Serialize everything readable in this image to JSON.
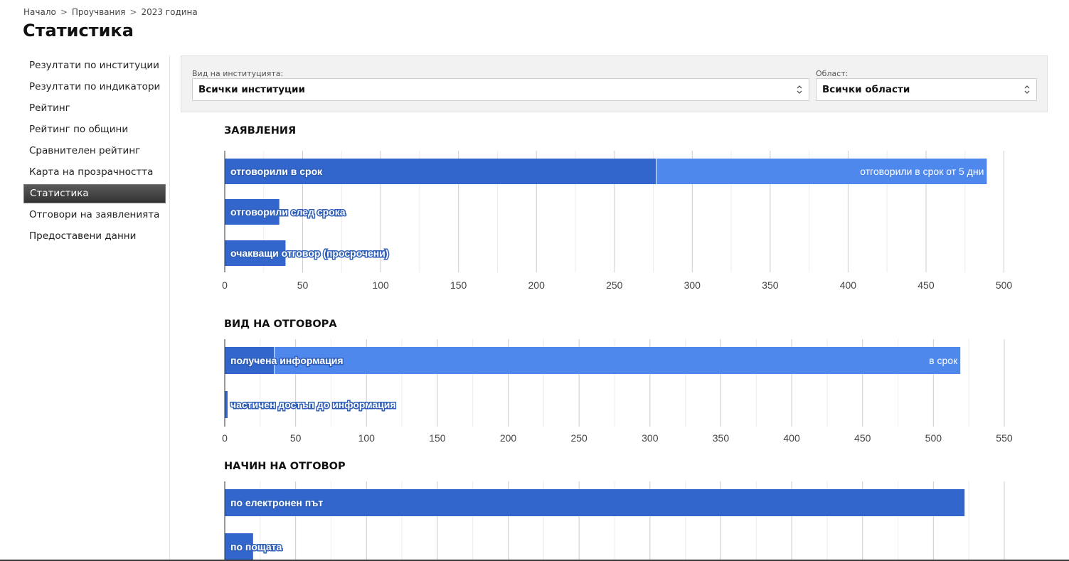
{
  "breadcrumb": {
    "home": "Начало",
    "section": "Проучвания",
    "current": "2023 година",
    "separator": ">"
  },
  "page_title": "Статистика",
  "sidebar": {
    "items": [
      {
        "label": "Резултати по институции",
        "active": false
      },
      {
        "label": "Резултати по индикатори",
        "active": false
      },
      {
        "label": "Рейтинг",
        "active": false
      },
      {
        "label": "Рейтинг по общини",
        "active": false
      },
      {
        "label": "Сравнителен рейтинг",
        "active": false
      },
      {
        "label": "Карта на прозрачността",
        "active": false
      },
      {
        "label": "Статистика",
        "active": true
      },
      {
        "label": "Отговори на заявленията",
        "active": false
      },
      {
        "label": "Предоставени данни",
        "active": false
      }
    ]
  },
  "filters": {
    "institution": {
      "label": "Вид на институцията:",
      "value": "Всички институции",
      "icon": "select-arrows-icon"
    },
    "region": {
      "label": "Област:",
      "value": "Всички области",
      "icon": "select-arrows-icon"
    }
  },
  "colors": {
    "primary": "#3366cc",
    "secondary": "#4f88ec",
    "grid": "#d6d6d6"
  },
  "chart_data": [
    {
      "type": "bar",
      "orientation": "horizontal",
      "stacked": true,
      "title": "ЗАЯВЛЕНИЯ",
      "xlim": [
        0,
        500
      ],
      "ticks": [
        0,
        50,
        100,
        150,
        200,
        250,
        300,
        350,
        400,
        450,
        500
      ],
      "bars": [
        {
          "segments": [
            {
              "label": "отговорили в срок",
              "value": 277,
              "color": "#3366cc"
            },
            {
              "label": "отговорили в срок от 5 дни",
              "value": 212,
              "color": "#4f88ec"
            }
          ]
        },
        {
          "segments": [
            {
              "label": "отговорили след срока",
              "value": 35,
              "color": "#3366cc"
            }
          ]
        },
        {
          "segments": [
            {
              "label": "очакващи отговор (просрочени)",
              "value": 39,
              "color": "#3366cc"
            }
          ]
        }
      ]
    },
    {
      "type": "bar",
      "orientation": "horizontal",
      "stacked": true,
      "title": "ВИД НА ОТГОВОРА",
      "xlim": [
        0,
        550
      ],
      "ticks": [
        0,
        50,
        100,
        150,
        200,
        250,
        300,
        350,
        400,
        450,
        500,
        550
      ],
      "bars": [
        {
          "segments": [
            {
              "label": "получена информация",
              "value": 35,
              "color": "#3366cc"
            },
            {
              "label": "в срок",
              "value": 484,
              "color": "#4f88ec"
            }
          ]
        },
        {
          "segments": [
            {
              "label": "частичен достъп до информация",
              "value": 2,
              "color": "#3366cc"
            }
          ]
        }
      ]
    },
    {
      "type": "bar",
      "orientation": "horizontal",
      "stacked": false,
      "title": "НАЧИН НА ОТГОВОР",
      "xlim": [
        0,
        550
      ],
      "ticks": [
        0,
        50,
        100,
        150,
        200,
        250,
        300,
        350,
        400,
        450,
        500,
        550
      ],
      "bars": [
        {
          "segments": [
            {
              "label": "по електронен път",
              "value": 522,
              "color": "#3366cc"
            }
          ]
        },
        {
          "segments": [
            {
              "label": "по пощата",
              "value": 20,
              "color": "#3366cc"
            }
          ]
        }
      ]
    }
  ]
}
